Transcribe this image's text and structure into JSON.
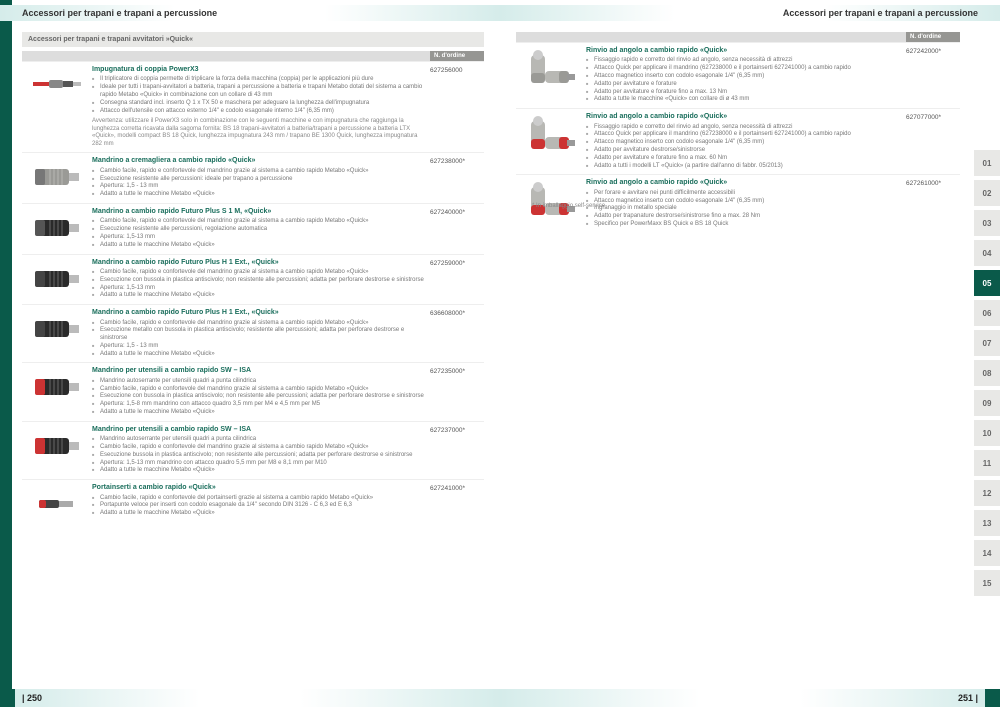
{
  "header": {
    "title": "Accessori per trapani e trapani a percussione"
  },
  "subhead_left": "Accessori per trapani e trapani avvitatori »Quick«",
  "col_order": "N. d'ordine",
  "left_items": [
    {
      "title": "Impugnatura di coppia PowerX3",
      "order": "627256000",
      "bullets": [
        "Il triplicatore di coppia permette di triplicare la forza della macchina (coppia) per le applicazioni più dure",
        "Ideale per tutti i trapani-avvitatori a batteria, trapani a percussione a batteria e trapani Metabo dotati del sistema a cambio rapido Metabo «Quick» in combinazione con un collare di 43 mm",
        "Consegna standard incl. inserto Q 1 x TX 50 e maschera per adeguare la lunghezza dell'impugnatura",
        "Attacco dell'utensile con attacco esterno 1/4\" e codolo esagonale interno 1/4\" (6,35 mm)"
      ],
      "note": "Avvertenza: utilizzare il PowerX3 solo in combinazione con le seguenti macchine e con impugnatura che raggiunga la lunghezza corretta ricavata dalla sagoma fornita: BS 18 trapani-avvitatori a batteria/trapani a percussione a batteria LTX «Quick», modelli compact BS 18 Quick, lunghezza impugnatura 243 mm / trapano BE 1300 Quick, lunghezza impugnatura 282 mm",
      "img": "adapter"
    },
    {
      "title": "Mandrino a cremagliera a cambio rapido «Quick»",
      "order": "627238000*",
      "bullets": [
        "Cambio facile, rapido e confortevole del mandrino grazie al sistema a cambio rapido Metabo «Quick»",
        "Esecuzione resistente alle percussioni: ideale per trapano a percussione",
        "Apertura: 1,5 - 13 mm",
        "Adatto a tutte le macchine Metabo «Quick»"
      ],
      "img": "chuck-gray"
    },
    {
      "title": "Mandrino a cambio rapido Futuro Plus S 1 M, «Quick»",
      "order": "627240000*",
      "bullets": [
        "Cambio facile, rapido e confortevole del mandrino grazie al sistema a cambio rapido Metabo «Quick»",
        "Esecuzione resistente alle percussioni, regolazione automatica",
        "Apertura: 1,5-13 mm",
        "Adatto a tutte le macchine Metabo «Quick»"
      ],
      "img": "chuck-black"
    },
    {
      "title": "Mandrino a cambio rapido Futuro Plus H 1 Ext., «Quick»",
      "order": "627259000*",
      "bullets": [
        "Cambio facile, rapido e confortevole del mandrino grazie al sistema a cambio rapido Metabo «Quick»",
        "Esecuzione con bussola in plastica antiscivolo; non resistente alle percussioni; adatta per perforare destrorse e sinistrorse",
        "Apertura: 1,5-13 mm",
        "Adatto a tutte le macchine Metabo «Quick»"
      ],
      "img": "chuck-black2"
    },
    {
      "title": "Mandrino a cambio rapido Futuro Plus H 1 Ext., «Quick»",
      "order": "636608000*",
      "bullets": [
        "Cambio facile, rapido e confortevole del mandrino grazie al sistema a cambio rapido Metabo «Quick»",
        "Esecuzione metallo con bussola in plastica antiscivolo; resistente alle percussioni; adatta per perforare destrorse e sinistrorse",
        "Apertura: 1,5 - 13 mm",
        "Adatto a tutte le macchine Metabo «Quick»"
      ],
      "img": "chuck-black2"
    },
    {
      "title": "Mandrino per utensili a cambio rapido SW – ISA",
      "order": "627235000*",
      "bullets": [
        "Mandrino autoserrante per utensili quadri a punta cilindrica",
        "Cambio facile, rapido e confortevole del mandrino grazie al sistema a cambio rapido Metabo «Quick»",
        "Esecuzione con bussola in plastica antiscivolo; non resistente alle percussioni; adatta per perforare destrorse e sinistrorse",
        "Apertura: 1,5-8 mm mandrino con attacco quadro 3,5 mm per M4 e 4,5 mm per M5",
        "Adatto a tutte le macchine Metabo «Quick»"
      ],
      "img": "chuck-red"
    },
    {
      "title": "Mandrino per utensili a cambio rapido SW – ISA",
      "order": "627237000*",
      "bullets": [
        "Mandrino autoserrante per utensili quadri a punta cilindrica",
        "Cambio facile, rapido e confortevole del mandrino grazie al sistema a cambio rapido Metabo «Quick»",
        "Esecuzione bussola in plastica antiscivolo; non resistente alle percussioni; adatta per perforare destrorse e sinistrorse",
        "Apertura: 1,5-13 mm mandrino con attacco quadro 5,5 mm per M8 e 8,1 mm per M10",
        "Adatto a tutte le macchine Metabo «Quick»"
      ],
      "img": "chuck-red"
    },
    {
      "title": "Portainserti a cambio rapido «Quick»",
      "order": "627241000*",
      "bullets": [
        "Cambio facile, rapido e confortevole del portainserti grazie al sistema a cambio rapido Metabo «Quick»",
        "Portapunte veloce per inserti con codolo esagonale da 1/4\" secondo DIN 3126 - C 6,3 ed E 6,3",
        "Adatto a tutte le macchine Metabo «Quick»"
      ],
      "img": "bit-holder"
    }
  ],
  "right_items": [
    {
      "title": "Rinvio ad angolo a cambio rapido «Quick»",
      "order": "627242000*",
      "bullets": [
        "Fissaggio rapido e corretto del rinvio ad angolo, senza necessità di attrezzi",
        "Attacco Quick per applicare il mandrino (627238000 e il portainserti 627241000) a cambio rapido",
        "Attacco magnetico inserto con codolo esagonale 1/4\" (6,35 mm)",
        "Adatto per avvitature e forature",
        "Adatto per avvitature e forature fino a max. 13 Nm",
        "Adatto a tutte le macchine «Quick» con collare di ø 43 mm"
      ],
      "img": "angle-gray"
    },
    {
      "title": "Rinvio ad angolo a cambio rapido «Quick»",
      "order": "627077000*",
      "bullets": [
        "Fissaggio rapido e corretto del rinvio ad angolo, senza necessità di attrezzi",
        "Attacco Quick per applicare il mandrino (627238000 e il portainserti 627241000) a cambio rapido",
        "Attacco magnetico inserto con codolo esagonale 1/4\" (6,35 mm)",
        "Adatto per avvitature destrorse/sinistrorse",
        "Adatto per avvitature e forature fino a max. 60 Nm",
        "Adatto a tutti i modelli LT «Quick» (a partire dall'anno di fabbr. 05/2013)"
      ],
      "img": "angle-red"
    },
    {
      "title": "Rinvio ad angolo a cambio rapido «Quick»",
      "order": "627261000*",
      "bullets": [
        "Per forare e avvitare nei punti difficilmente accessibili",
        "Attacco magnetico inserto con codolo esagonale 1/4\" (6,35 mm)",
        "Ingranaggio in metallo speciale",
        "Adatto per trapanature destrorse/sinistrorse fino a max. 28 Nm",
        "Specifico per PowerMaxx BS Quick e BS 18 Quick"
      ],
      "img": "angle-red2"
    }
  ],
  "pager": {
    "items": [
      "01",
      "02",
      "03",
      "04",
      "05",
      "06",
      "07",
      "08",
      "09",
      "10",
      "11",
      "12",
      "13",
      "14",
      "15"
    ],
    "active": "05"
  },
  "footnote": "* In imballaggio self-service",
  "page_left": "| 250",
  "page_right": "251 |"
}
